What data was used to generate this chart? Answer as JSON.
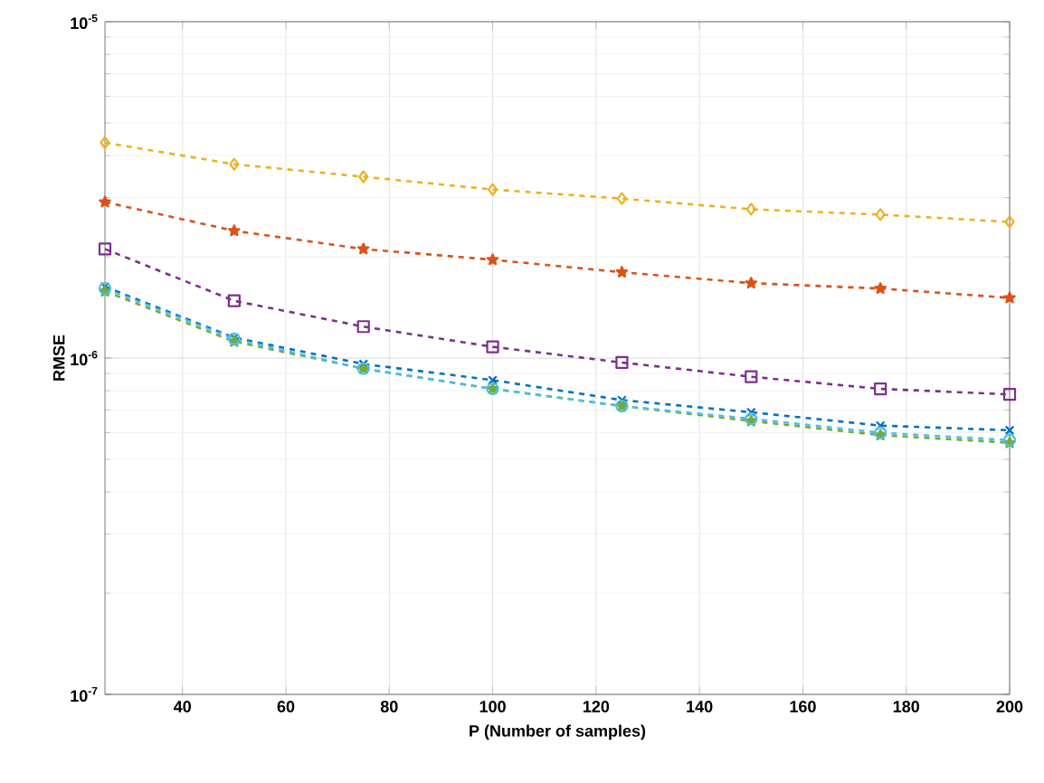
{
  "chart_data": {
    "type": "line",
    "xlabel": "P (Number of samples)",
    "ylabel": "RMSE",
    "log": "y",
    "xlim": [
      25,
      200
    ],
    "xticks": [
      40,
      60,
      80,
      100,
      120,
      140,
      160,
      180,
      200
    ],
    "ylim": [
      1e-07,
      1e-05
    ],
    "yticks": [
      {
        "value": 1e-07,
        "label": "10$^{-7}$"
      },
      {
        "value": 1e-06,
        "label": "10$^{-6}$"
      },
      {
        "value": 1e-05,
        "label": "10$^{-5}$"
      }
    ],
    "grid": true,
    "line_style": "dashed",
    "x": [
      25,
      50,
      75,
      100,
      125,
      150,
      175,
      200
    ],
    "series": [
      {
        "color": "#edb120",
        "marker": "diamond",
        "values": [
          4.37e-06,
          3.77e-06,
          3.46e-06,
          3.17e-06,
          2.98e-06,
          2.77e-06,
          2.67e-06,
          2.54e-06
        ]
      },
      {
        "color": "#d95319",
        "marker": "star",
        "values": [
          2.91e-06,
          2.39e-06,
          2.11e-06,
          1.96e-06,
          1.8e-06,
          1.67e-06,
          1.61e-06,
          1.51e-06
        ]
      },
      {
        "color": "#7e2f8e",
        "marker": "square",
        "values": [
          2.11e-06,
          1.48e-06,
          1.24e-06,
          1.08e-06,
          9.7e-07,
          8.8e-07,
          8.1e-07,
          7.8e-07
        ]
      },
      {
        "color": "#0072bd",
        "marker": "cross",
        "values": [
          1.63e-06,
          1.15e-06,
          9.6e-07,
          8.6e-07,
          7.5e-07,
          6.9e-07,
          6.3e-07,
          6.1e-07
        ]
      },
      {
        "color": "#77ac30",
        "marker": "star",
        "values": [
          1.58e-06,
          1.12e-06,
          9.3e-07,
          8.1e-07,
          7.2e-07,
          6.5e-07,
          5.9e-07,
          5.6e-07
        ]
      },
      {
        "color": "#4dbeee",
        "marker": "circle",
        "values": [
          1.61e-06,
          1.14e-06,
          9.3e-07,
          8.1e-07,
          7.2e-07,
          6.6e-07,
          6e-07,
          5.7e-07
        ]
      }
    ]
  }
}
